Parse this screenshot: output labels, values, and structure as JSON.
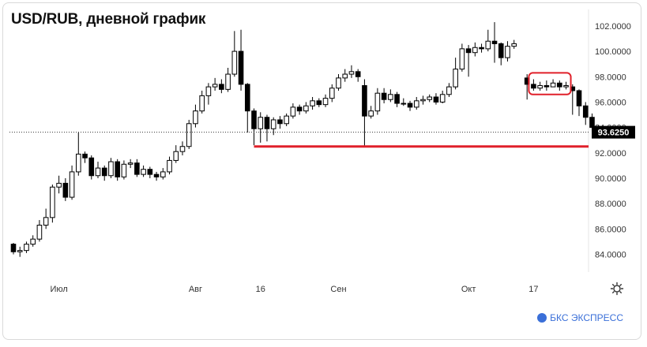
{
  "header": {
    "title": "USD/RUB, дневной график"
  },
  "brand": {
    "label": "БКС ЭКСПРЕСС",
    "color": "#3a6fd8"
  },
  "colors": {
    "up": "#ffffff",
    "down": "#000000",
    "support_line": "#e0202a",
    "highlight_box": "#e0202a"
  },
  "chart_data": {
    "type": "candlestick",
    "title": "USD/RUB, дневной график",
    "ylim": [
      82.6,
      103.3
    ],
    "y_ticks": [
      "102.0000",
      "100.0000",
      "98.0000",
      "96.0000",
      "94.0000",
      "92.0000",
      "90.0000",
      "88.0000",
      "86.0000",
      "84.0000"
    ],
    "x_ticks": [
      "Июл",
      "Авг",
      "16",
      "Сен",
      "Окт",
      "17"
    ],
    "last_price": {
      "value": 93.625,
      "label": "93.6250"
    },
    "support_level": 92.5,
    "grid": false,
    "candles": [
      [
        84.8,
        84.2,
        84.9,
        84.0
      ],
      [
        84.2,
        84.3,
        84.6,
        83.8
      ],
      [
        84.3,
        84.8,
        85.0,
        84.1
      ],
      [
        84.8,
        85.2,
        85.5,
        84.6
      ],
      [
        85.2,
        86.3,
        86.7,
        85.0
      ],
      [
        86.3,
        86.9,
        87.6,
        86.0
      ],
      [
        86.9,
        89.3,
        89.5,
        86.5
      ],
      [
        89.3,
        89.6,
        90.2,
        88.8
      ],
      [
        89.6,
        88.5,
        90.0,
        88.2
      ],
      [
        88.5,
        90.5,
        91.0,
        88.3
      ],
      [
        90.5,
        91.9,
        93.6,
        90.2
      ],
      [
        91.9,
        91.6,
        92.1,
        91.2
      ],
      [
        91.6,
        90.2,
        91.8,
        89.9
      ],
      [
        90.2,
        90.8,
        91.3,
        90.0
      ],
      [
        90.8,
        90.2,
        91.0,
        89.8
      ],
      [
        90.2,
        91.3,
        91.6,
        90.0
      ],
      [
        91.3,
        90.1,
        91.5,
        89.8
      ],
      [
        90.1,
        91.1,
        91.4,
        89.9
      ],
      [
        91.1,
        91.2,
        91.5,
        90.8
      ],
      [
        91.2,
        90.3,
        91.5,
        90.1
      ],
      [
        90.3,
        90.7,
        91.0,
        90.1
      ],
      [
        90.7,
        90.3,
        90.9,
        90.0
      ],
      [
        90.3,
        90.1,
        90.5,
        89.8
      ],
      [
        90.1,
        90.5,
        90.8,
        89.9
      ],
      [
        90.5,
        91.4,
        91.7,
        90.3
      ],
      [
        91.4,
        92.1,
        92.6,
        91.2
      ],
      [
        92.1,
        92.5,
        92.9,
        91.8
      ],
      [
        92.5,
        94.3,
        94.6,
        92.3
      ],
      [
        94.3,
        95.3,
        95.8,
        94.0
      ],
      [
        95.3,
        96.5,
        96.9,
        95.1
      ],
      [
        96.5,
        97.2,
        97.5,
        95.8
      ],
      [
        97.2,
        97.4,
        97.9,
        96.9
      ],
      [
        97.4,
        97.0,
        97.8,
        96.7
      ],
      [
        97.0,
        98.2,
        98.7,
        96.8
      ],
      [
        98.2,
        100.0,
        101.6,
        98.0
      ],
      [
        100.0,
        97.4,
        101.7,
        96.9
      ],
      [
        97.4,
        95.3,
        97.5,
        93.6
      ],
      [
        95.3,
        93.9,
        95.5,
        92.6
      ],
      [
        93.9,
        94.8,
        95.2,
        92.8
      ],
      [
        94.8,
        93.9,
        95.0,
        92.9
      ],
      [
        93.9,
        94.6,
        94.8,
        93.4
      ],
      [
        94.6,
        94.3,
        94.9,
        93.9
      ],
      [
        94.3,
        94.9,
        95.1,
        94.1
      ],
      [
        94.9,
        95.6,
        95.9,
        94.7
      ],
      [
        95.6,
        95.3,
        95.8,
        95.0
      ],
      [
        95.3,
        95.7,
        96.0,
        95.1
      ],
      [
        95.7,
        96.1,
        96.4,
        95.4
      ],
      [
        96.1,
        95.8,
        96.3,
        95.6
      ],
      [
        95.8,
        96.3,
        96.6,
        95.6
      ],
      [
        96.3,
        97.1,
        97.4,
        96.0
      ],
      [
        97.1,
        97.9,
        98.2,
        96.9
      ],
      [
        97.9,
        98.2,
        98.6,
        97.6
      ],
      [
        98.2,
        98.4,
        98.9,
        97.9
      ],
      [
        98.4,
        98.0,
        98.6,
        97.6
      ],
      [
        97.3,
        94.9,
        97.8,
        92.5
      ],
      [
        94.9,
        95.3,
        95.7,
        94.7
      ],
      [
        95.3,
        96.7,
        97.1,
        95.0
      ],
      [
        96.7,
        96.2,
        97.1,
        95.9
      ],
      [
        96.2,
        96.6,
        97.0,
        96.0
      ],
      [
        96.6,
        95.9,
        96.8,
        95.6
      ],
      [
        95.9,
        95.9,
        96.3,
        95.7
      ],
      [
        95.9,
        95.6,
        96.1,
        95.3
      ],
      [
        95.6,
        96.1,
        96.4,
        95.4
      ],
      [
        96.1,
        96.2,
        96.5,
        95.8
      ],
      [
        96.2,
        96.4,
        96.6,
        96.0
      ],
      [
        96.4,
        96.0,
        96.7,
        95.8
      ],
      [
        96.0,
        96.6,
        96.9,
        95.9
      ],
      [
        96.6,
        97.2,
        97.5,
        96.4
      ],
      [
        97.2,
        98.6,
        99.5,
        97.0
      ],
      [
        98.6,
        100.2,
        100.6,
        98.4
      ],
      [
        100.2,
        99.9,
        100.5,
        98.0
      ],
      [
        99.9,
        100.3,
        100.7,
        99.6
      ],
      [
        100.3,
        100.2,
        100.6,
        99.9
      ],
      [
        100.2,
        100.8,
        101.7,
        100.0
      ],
      [
        100.8,
        100.6,
        102.3,
        99.1
      ],
      [
        100.6,
        99.5,
        100.7,
        98.9
      ],
      [
        99.5,
        100.4,
        100.8,
        99.2
      ],
      [
        100.4,
        100.6,
        100.9,
        100.2
      ],
      [
        null,
        null,
        null,
        null
      ],
      [
        97.9,
        97.4,
        98.2,
        96.2
      ],
      [
        97.4,
        97.1,
        97.8,
        96.9
      ],
      [
        97.1,
        97.3,
        97.6,
        96.9
      ],
      [
        97.3,
        97.2,
        97.7,
        96.9
      ],
      [
        97.2,
        97.5,
        97.8,
        97.2
      ],
      [
        97.5,
        97.2,
        97.7,
        96.9
      ],
      [
        97.2,
        97.3,
        97.6,
        97.0
      ],
      [
        97.2,
        96.9,
        97.4,
        95.0
      ],
      [
        96.9,
        95.7,
        97.0,
        94.9
      ],
      [
        95.7,
        94.8,
        96.0,
        94.2
      ],
      [
        94.8,
        94.0,
        95.1,
        93.7
      ],
      [
        94.0,
        93.5,
        94.2,
        93.2
      ]
    ]
  }
}
